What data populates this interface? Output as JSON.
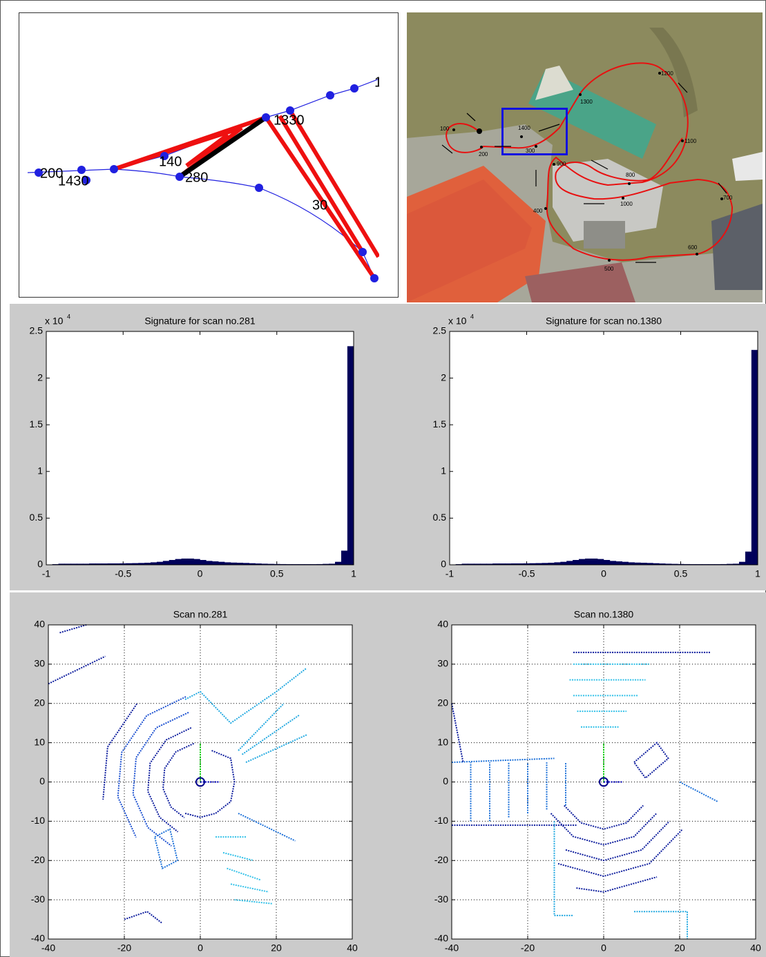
{
  "trajectory_diagram": {
    "labels": [
      "1",
      "1330",
      "140",
      "280",
      "200",
      "1430",
      "30"
    ]
  },
  "map": {
    "labels": [
      "100",
      "200",
      "300",
      "400",
      "500",
      "600",
      "700",
      "800",
      "900",
      "1000",
      "1100",
      "1200",
      "1300",
      "1400"
    ]
  },
  "chart_data": [
    {
      "type": "histogram",
      "title": "Signature for scan no.281",
      "y_scale_label": {
        "base": "x 10",
        "exponent": "4"
      },
      "color": "#00005a",
      "bins": [
        -1,
        -0.96,
        -0.92,
        -0.88,
        -0.84,
        -0.8,
        -0.76,
        -0.72,
        -0.68,
        -0.64,
        -0.6,
        -0.56,
        -0.52,
        -0.48,
        -0.44,
        -0.4,
        -0.36,
        -0.32,
        -0.28,
        -0.24,
        -0.2,
        -0.16,
        -0.12,
        -0.08,
        -0.04,
        0,
        0.04,
        0.08,
        0.12,
        0.16,
        0.2,
        0.24,
        0.28,
        0.32,
        0.36,
        0.4,
        0.44,
        0.48,
        0.52,
        0.56,
        0.6,
        0.64,
        0.68,
        0.72,
        0.76,
        0.8,
        0.84,
        0.88,
        0.92,
        0.96,
        1
      ],
      "values": [
        0,
        0.005,
        0.01,
        0.01,
        0.01,
        0.01,
        0.01,
        0.012,
        0.012,
        0.012,
        0.013,
        0.013,
        0.014,
        0.015,
        0.016,
        0.018,
        0.02,
        0.025,
        0.03,
        0.04,
        0.05,
        0.06,
        0.065,
        0.065,
        0.06,
        0.05,
        0.04,
        0.035,
        0.03,
        0.025,
        0.022,
        0.02,
        0.018,
        0.015,
        0.012,
        0.01,
        0.008,
        0.007,
        0.006,
        0.005,
        0.005,
        0.005,
        0.005,
        0.005,
        0.006,
        0.008,
        0.01,
        0.03,
        0.15,
        2.34
      ],
      "xlim": [
        -1,
        1
      ],
      "xticks": [
        -1,
        -0.5,
        0,
        0.5,
        1
      ],
      "ylim": [
        0,
        2.5
      ],
      "yticks": [
        0,
        0.5,
        1,
        1.5,
        2,
        2.5
      ],
      "grid": false
    },
    {
      "type": "histogram",
      "title": "Signature for scan no.1380",
      "y_scale_label": {
        "base": "x 10",
        "exponent": "4"
      },
      "color": "#00005a",
      "bins": [
        -1,
        -0.96,
        -0.92,
        -0.88,
        -0.84,
        -0.8,
        -0.76,
        -0.72,
        -0.68,
        -0.64,
        -0.6,
        -0.56,
        -0.52,
        -0.48,
        -0.44,
        -0.4,
        -0.36,
        -0.32,
        -0.28,
        -0.24,
        -0.2,
        -0.16,
        -0.12,
        -0.08,
        -0.04,
        0,
        0.04,
        0.08,
        0.12,
        0.16,
        0.2,
        0.24,
        0.28,
        0.32,
        0.36,
        0.4,
        0.44,
        0.48,
        0.52,
        0.56,
        0.6,
        0.64,
        0.68,
        0.72,
        0.76,
        0.8,
        0.84,
        0.88,
        0.92,
        0.96,
        1
      ],
      "values": [
        0,
        0.005,
        0.01,
        0.01,
        0.01,
        0.01,
        0.01,
        0.012,
        0.012,
        0.012,
        0.013,
        0.013,
        0.014,
        0.015,
        0.016,
        0.018,
        0.02,
        0.025,
        0.03,
        0.04,
        0.05,
        0.06,
        0.065,
        0.065,
        0.06,
        0.05,
        0.04,
        0.035,
        0.03,
        0.025,
        0.022,
        0.02,
        0.018,
        0.015,
        0.012,
        0.01,
        0.008,
        0.007,
        0.006,
        0.005,
        0.005,
        0.005,
        0.005,
        0.005,
        0.006,
        0.008,
        0.01,
        0.03,
        0.14,
        2.3
      ],
      "xlim": [
        -1,
        1
      ],
      "xticks": [
        -1,
        -0.5,
        0,
        0.5,
        1
      ],
      "ylim": [
        0,
        2.5
      ],
      "yticks": [
        0,
        0.5,
        1,
        1.5,
        2,
        2.5
      ],
      "grid": false
    },
    {
      "type": "line",
      "title": "Scan no.281",
      "xlim": [
        -40,
        40
      ],
      "xticks": [
        -40,
        -20,
        0,
        20,
        40
      ],
      "ylim": [
        -40,
        40
      ],
      "yticks": [
        -40,
        -30,
        -20,
        -10,
        0,
        10,
        20,
        30,
        40
      ],
      "grid": true,
      "series": [
        {
          "color": "#0a1a9c",
          "x": [
            -1.7,
            -6.4,
            -9.4,
            -9.8,
            -7.7,
            -4.2
          ],
          "y": [
            9.8,
            7.7,
            3.4,
            -1.7,
            -6.4,
            -9.1
          ]
        },
        {
          "color": "#0a1a9c",
          "x": [
            -2.4,
            -9,
            -13.2,
            -13.8,
            -10.7,
            -5.9
          ],
          "y": [
            13.8,
            10.7,
            4.8,
            -2.4,
            -9,
            -12.7
          ]
        },
        {
          "color": "#1a4fd0",
          "x": [
            -3.1,
            -11.6,
            -16.9,
            -17.7,
            -13.8,
            -7.6
          ],
          "y": [
            17.7,
            13.8,
            6.2,
            -3.1,
            -11.6,
            -16.3
          ]
        },
        {
          "color": "#1a4fd0",
          "x": [
            -3.8,
            -14.1,
            -20.7,
            -21.7,
            -16.9
          ],
          "y": [
            21.7,
            16.9,
            7.5,
            -3.8,
            -14.1
          ]
        },
        {
          "color": "#0a1a9c",
          "x": [
            -16.7,
            -24.4,
            -25.6
          ],
          "y": [
            19.9,
            8.9,
            -4.5
          ]
        },
        {
          "color": "#0a1a9c",
          "x": [
            3,
            8,
            9,
            8,
            4,
            0,
            -4
          ],
          "y": [
            8,
            6,
            0,
            -5,
            -8,
            -9,
            -8
          ]
        },
        {
          "color": "#20a8e0",
          "x": [
            -4,
            0,
            8,
            20,
            28
          ],
          "y": [
            21,
            23,
            15,
            23,
            29
          ]
        },
        {
          "color": "#20a8e0",
          "x": [
            10,
            22
          ],
          "y": [
            8,
            20
          ]
        },
        {
          "color": "#20a8e0",
          "x": [
            12,
            28
          ],
          "y": [
            5,
            12
          ]
        },
        {
          "color": "#20a8e0",
          "x": [
            11,
            26
          ],
          "y": [
            7,
            17
          ]
        },
        {
          "color": "#30c0e8",
          "x": [
            4,
            12
          ],
          "y": [
            -14,
            -14
          ]
        },
        {
          "color": "#30c0e8",
          "x": [
            6,
            14
          ],
          "y": [
            -18,
            -20
          ]
        },
        {
          "color": "#30c0e8",
          "x": [
            7,
            16
          ],
          "y": [
            -22,
            -25
          ]
        },
        {
          "color": "#30c0e8",
          "x": [
            8,
            18
          ],
          "y": [
            -26,
            -28
          ]
        },
        {
          "color": "#30c0e8",
          "x": [
            9,
            19
          ],
          "y": [
            -30,
            -31
          ]
        },
        {
          "color": "#1a6fd8",
          "x": [
            -12,
            -8,
            -6,
            -10,
            -12
          ],
          "y": [
            -14,
            -12,
            -20,
            -22,
            -14
          ]
        },
        {
          "color": "#0a1a9c",
          "x": [
            -40,
            -25
          ],
          "y": [
            25,
            32
          ]
        },
        {
          "color": "#0a1a9c",
          "x": [
            -37,
            -30
          ],
          "y": [
            38,
            40
          ]
        },
        {
          "color": "#1a6fd8",
          "x": [
            10,
            25
          ],
          "y": [
            -8,
            -15
          ]
        },
        {
          "color": "#0a1a9c",
          "x": [
            -20,
            -14,
            -10
          ],
          "y": [
            -35,
            -33,
            -36
          ]
        },
        {
          "color": "#00cc00",
          "x": [
            0,
            0
          ],
          "y": [
            0,
            10
          ]
        },
        {
          "color": "#0000c0",
          "x": [
            0,
            5
          ],
          "y": [
            0,
            0
          ]
        }
      ]
    },
    {
      "type": "line",
      "title": "Scan no.1380",
      "xlim": [
        -40,
        40
      ],
      "xticks": [
        -40,
        -20,
        0,
        20,
        40
      ],
      "ylim": [
        -40,
        40
      ],
      "yticks": [
        -40,
        -30,
        -20,
        -10,
        0,
        10,
        20,
        30,
        40
      ],
      "grid": true,
      "series": [
        {
          "color": "#30c0e8",
          "x": [
            -6,
            4
          ],
          "y": [
            14,
            14
          ]
        },
        {
          "color": "#30c0e8",
          "x": [
            -7,
            6
          ],
          "y": [
            18,
            18
          ]
        },
        {
          "color": "#30c0e8",
          "x": [
            -8,
            9
          ],
          "y": [
            22,
            22
          ]
        },
        {
          "color": "#30c0e8",
          "x": [
            -9,
            11
          ],
          "y": [
            26,
            26
          ]
        },
        {
          "color": "#30c0e8",
          "x": [
            -8,
            12
          ],
          "y": [
            30,
            30
          ]
        },
        {
          "color": "#0a1a9c",
          "x": [
            -8,
            28
          ],
          "y": [
            33,
            33
          ]
        },
        {
          "color": "#1a6fd8",
          "x": [
            -10,
            -10
          ],
          "y": [
            -6,
            5
          ]
        },
        {
          "color": "#1a6fd8",
          "x": [
            -15,
            -15
          ],
          "y": [
            -7,
            5
          ]
        },
        {
          "color": "#1a6fd8",
          "x": [
            -20,
            -20
          ],
          "y": [
            -8,
            5
          ]
        },
        {
          "color": "#1a6fd8",
          "x": [
            -25,
            -25
          ],
          "y": [
            -9,
            5
          ]
        },
        {
          "color": "#1a6fd8",
          "x": [
            -30,
            -30
          ],
          "y": [
            -10,
            5
          ]
        },
        {
          "color": "#1a6fd8",
          "x": [
            -35,
            -35
          ],
          "y": [
            -10,
            5
          ]
        },
        {
          "color": "#0a1a9c",
          "x": [
            -40,
            -7
          ],
          "y": [
            -11,
            -11
          ]
        },
        {
          "color": "#1a6fd8",
          "x": [
            -40,
            -13
          ],
          "y": [
            5,
            6
          ]
        },
        {
          "color": "#0a1a9c",
          "x": [
            -10.4,
            -6,
            0,
            6,
            10.4
          ],
          "y": [
            -6,
            -10.4,
            -12,
            -10.4,
            -6
          ]
        },
        {
          "color": "#0a1a9c",
          "x": [
            -13.9,
            -8,
            0,
            8,
            13.9
          ],
          "y": [
            -8,
            -13.9,
            -16,
            -13.9,
            -8
          ]
        },
        {
          "color": "#0a1a9c",
          "x": [
            -10,
            0,
            10,
            17.3
          ],
          "y": [
            -17.3,
            -20,
            -17.3,
            -10
          ]
        },
        {
          "color": "#0a1a9c",
          "x": [
            -12,
            0,
            12,
            20.8
          ],
          "y": [
            -20.8,
            -24,
            -20.8,
            -12
          ]
        },
        {
          "color": "#0a1a9c",
          "x": [
            -7.2,
            0,
            14
          ],
          "y": [
            -27,
            -28,
            -24.2
          ]
        },
        {
          "color": "#20a8e0",
          "x": [
            -13,
            -13,
            -8
          ],
          "y": [
            -10,
            -34,
            -34
          ]
        },
        {
          "color": "#20a8e0",
          "x": [
            8,
            22,
            22
          ],
          "y": [
            -33,
            -33,
            -40
          ]
        },
        {
          "color": "#0a1a9c",
          "x": [
            8,
            14,
            17,
            11,
            8
          ],
          "y": [
            5,
            10,
            6,
            1,
            5
          ]
        },
        {
          "color": "#1a6fd8",
          "x": [
            20,
            30
          ],
          "y": [
            0,
            -5
          ]
        },
        {
          "color": "#0a1a9c",
          "x": [
            -40,
            -37
          ],
          "y": [
            20,
            5
          ]
        },
        {
          "color": "#00cc00",
          "x": [
            0,
            0
          ],
          "y": [
            0,
            10
          ]
        },
        {
          "color": "#0000c0",
          "x": [
            0,
            5
          ],
          "y": [
            0,
            0
          ]
        }
      ]
    }
  ]
}
